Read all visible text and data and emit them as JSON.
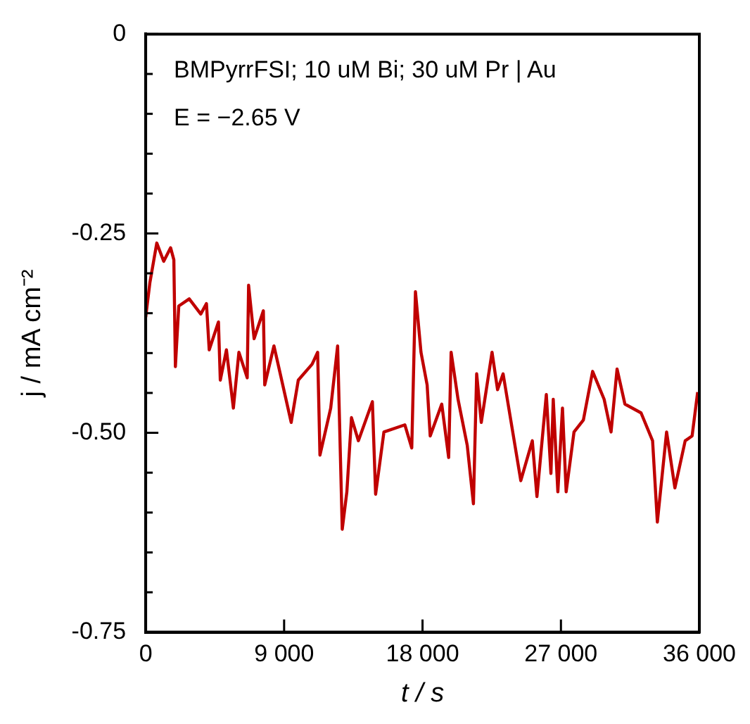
{
  "chart_data": {
    "type": "line",
    "xlabel": "t / s",
    "ylabel": "j / mA cm⁻²",
    "annotations": [
      "BMPyrrFSI; 10 uM Bi; 30 uM Pr | Au",
      "E = −2.65 V"
    ],
    "xlim": [
      0,
      36000
    ],
    "xticks": [
      0,
      {
        "value": 9000,
        "label": "9 000"
      },
      {
        "value": 18000,
        "label": "18 000"
      },
      {
        "value": 27000,
        "label": "27 000"
      },
      {
        "value": 36000,
        "label": "36 000"
      }
    ],
    "ylim": [
      -0.75,
      0
    ],
    "yticks": [
      {
        "value": -0.75,
        "label": "-0.75"
      },
      {
        "value": -0.7,
        "label": null
      },
      {
        "value": -0.65,
        "label": null
      },
      {
        "value": -0.6,
        "label": null
      },
      {
        "value": -0.55,
        "label": null
      },
      {
        "value": -0.5,
        "label": "-0.50"
      },
      {
        "value": -0.45,
        "label": null
      },
      {
        "value": -0.4,
        "label": null
      },
      {
        "value": -0.35,
        "label": null
      },
      {
        "value": -0.3,
        "label": null
      },
      {
        "value": -0.25,
        "label": "-0.25"
      },
      {
        "value": -0.2,
        "label": null
      },
      {
        "value": -0.15,
        "label": null
      },
      {
        "value": -0.1,
        "label": null
      },
      {
        "value": -0.05,
        "label": null
      },
      0
    ],
    "grid": false,
    "legend": false,
    "marker": "none",
    "line_style": "solid",
    "series": [
      {
        "color": "#c00000",
        "x": [
          0,
          270,
          720,
          1170,
          1620,
          1830,
          1930,
          2150,
          2830,
          3580,
          3950,
          4130,
          4730,
          4850,
          5250,
          5700,
          6060,
          6600,
          6690,
          7050,
          7650,
          7740,
          8340,
          9460,
          9920,
          10820,
          11180,
          11330,
          12030,
          12480,
          12780,
          13080,
          13380,
          13830,
          14740,
          14950,
          15490,
          16850,
          17300,
          17540,
          17900,
          18300,
          18500,
          19250,
          19700,
          19860,
          20310,
          20910,
          21310,
          21520,
          21820,
          22520,
          22880,
          23240,
          24390,
          25140,
          25440,
          26050,
          26350,
          26500,
          26800,
          27100,
          27340,
          27850,
          28460,
          29060,
          29810,
          30260,
          30650,
          31160,
          32210,
          32960,
          33270,
          33870,
          34410,
          35080,
          35530,
          35890
        ],
        "values": [
          -0.355,
          -0.312,
          -0.262,
          -0.285,
          -0.268,
          -0.283,
          -0.417,
          -0.341,
          -0.332,
          -0.351,
          -0.338,
          -0.396,
          -0.361,
          -0.434,
          -0.396,
          -0.469,
          -0.399,
          -0.431,
          -0.315,
          -0.382,
          -0.347,
          -0.44,
          -0.391,
          -0.487,
          -0.434,
          -0.414,
          -0.399,
          -0.528,
          -0.469,
          -0.391,
          -0.621,
          -0.574,
          -0.481,
          -0.51,
          -0.461,
          -0.577,
          -0.499,
          -0.49,
          -0.519,
          -0.323,
          -0.399,
          -0.44,
          -0.504,
          -0.464,
          -0.531,
          -0.399,
          -0.458,
          -0.516,
          -0.589,
          -0.426,
          -0.487,
          -0.399,
          -0.446,
          -0.426,
          -0.56,
          -0.51,
          -0.58,
          -0.452,
          -0.551,
          -0.458,
          -0.574,
          -0.469,
          -0.574,
          -0.499,
          -0.484,
          -0.423,
          -0.458,
          -0.499,
          -0.42,
          -0.464,
          -0.475,
          -0.51,
          -0.612,
          -0.499,
          -0.569,
          -0.51,
          -0.504,
          -0.449
        ]
      }
    ]
  }
}
